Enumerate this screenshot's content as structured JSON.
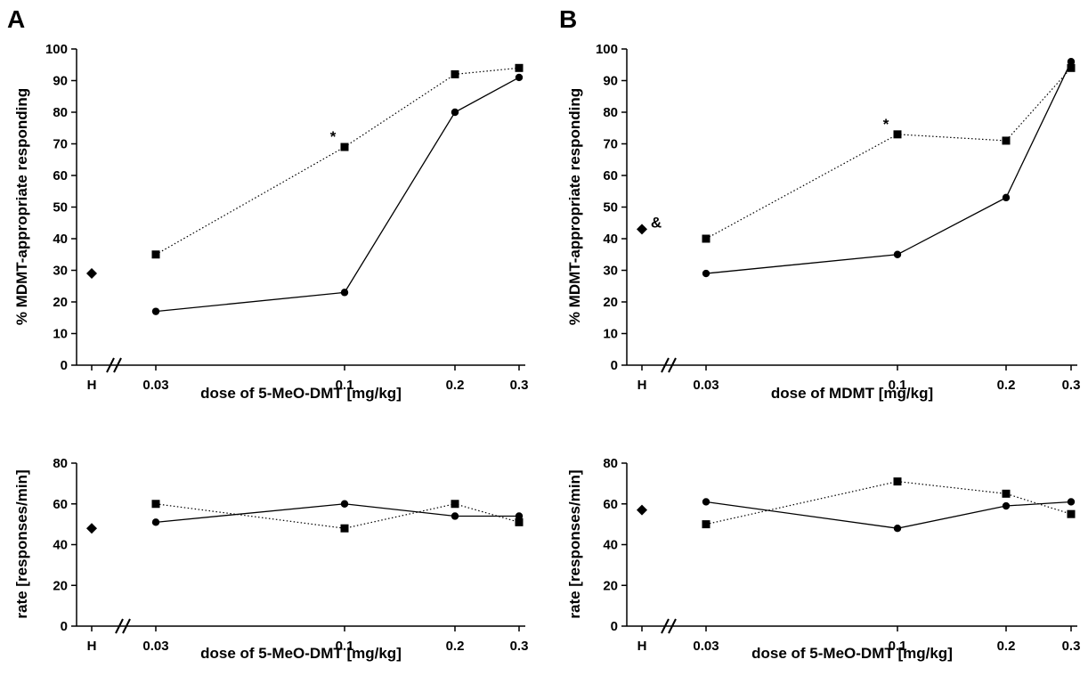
{
  "panel_labels": [
    "A",
    "B"
  ],
  "chart_data": [
    {
      "type": "line",
      "panel": "A",
      "xlabel": "dose of 5-MeO-DMT [mg/kg]",
      "ylabel": "% MDMT-appropriate responding",
      "categories": [
        "0.03",
        "0.1",
        "0.2",
        "0.3"
      ],
      "control_label": "H",
      "control_value": 29,
      "ylim": [
        0,
        100
      ],
      "yticks": [
        0,
        10,
        20,
        30,
        40,
        50,
        60,
        70,
        80,
        90,
        100
      ],
      "series": [
        {
          "style": "dotted-square",
          "values": [
            35,
            69,
            92,
            94
          ]
        },
        {
          "style": "solid-circle",
          "values": [
            17,
            23,
            80,
            91
          ]
        }
      ],
      "annotations": [
        {
          "text": "*",
          "category": "0.1",
          "series": 0
        }
      ]
    },
    {
      "type": "line",
      "panel": "B",
      "xlabel": "dose of MDMT [mg/kg]",
      "ylabel": "% MDMT-appropriate responding",
      "categories": [
        "0.03",
        "0.1",
        "0.2",
        "0.3"
      ],
      "control_label": "H",
      "control_value": 43,
      "ylim": [
        0,
        100
      ],
      "yticks": [
        0,
        10,
        20,
        30,
        40,
        50,
        60,
        70,
        80,
        90,
        100
      ],
      "series": [
        {
          "style": "dotted-square",
          "values": [
            40,
            73,
            71,
            94
          ]
        },
        {
          "style": "solid-circle",
          "values": [
            29,
            35,
            53,
            96
          ]
        }
      ],
      "annotations": [
        {
          "text": "*",
          "category": "0.1",
          "series": 0
        },
        {
          "text": "&",
          "category": "H",
          "series": -1
        }
      ]
    },
    {
      "type": "line",
      "panel": "A",
      "xlabel": "dose of 5-MeO-DMT [mg/kg]",
      "ylabel": "rate [responses/min]",
      "categories": [
        "0.03",
        "0.1",
        "0.2",
        "0.3"
      ],
      "control_label": "H",
      "control_value": 48,
      "ylim": [
        0,
        80
      ],
      "yticks": [
        0,
        20,
        40,
        60,
        80
      ],
      "series": [
        {
          "style": "dotted-square",
          "values": [
            60,
            48,
            60,
            51
          ]
        },
        {
          "style": "solid-circle",
          "values": [
            51,
            60,
            54,
            54
          ]
        }
      ],
      "annotations": []
    },
    {
      "type": "line",
      "panel": "B",
      "xlabel": "dose of 5-MeO-DMT [mg/kg]",
      "ylabel": "rate [responses/min]",
      "categories": [
        "0.03",
        "0.1",
        "0.2",
        "0.3"
      ],
      "control_label": "H",
      "control_value": 57,
      "ylim": [
        0,
        80
      ],
      "yticks": [
        0,
        20,
        40,
        60,
        80
      ],
      "series": [
        {
          "style": "dotted-square",
          "values": [
            50,
            71,
            65,
            55
          ]
        },
        {
          "style": "solid-circle",
          "values": [
            61,
            48,
            59,
            61
          ]
        }
      ],
      "annotations": []
    }
  ]
}
